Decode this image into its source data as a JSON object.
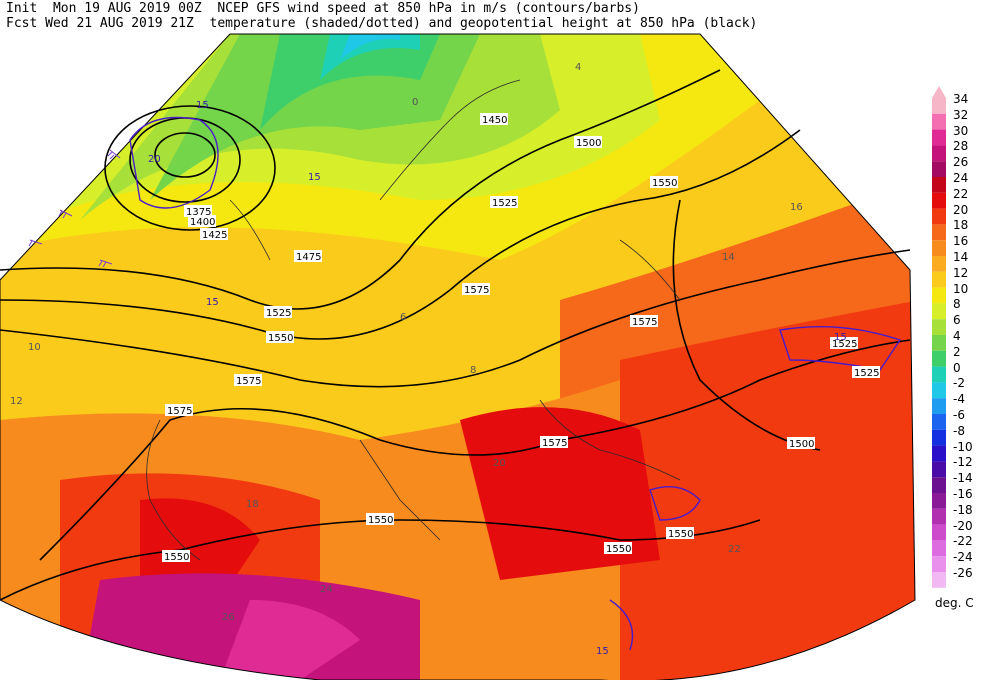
{
  "header": {
    "init_line": "Init  Mon 19 AUG 2019 00Z  NCEP GFS wind speed at 850 hPa in m/s (contours/barbs)",
    "fcst_line": "Fcst Wed 21 AUG 2019 21Z  temperature (shaded/dotted) and geopotential height at 850 hPa (black)"
  },
  "colorbar": {
    "unit": "deg. C",
    "levels": [
      {
        "label": "34",
        "color": "#f7b6c8"
      },
      {
        "label": "32",
        "color": "#f46fb2"
      },
      {
        "label": "30",
        "color": "#e02b95"
      },
      {
        "label": "28",
        "color": "#c5137c"
      },
      {
        "label": "26",
        "color": "#a50a63"
      },
      {
        "label": "24",
        "color": "#c4061a"
      },
      {
        "label": "22",
        "color": "#e40c0c"
      },
      {
        "label": "20",
        "color": "#f23a10"
      },
      {
        "label": "18",
        "color": "#f6691a"
      },
      {
        "label": "16",
        "color": "#f88b1e"
      },
      {
        "label": "14",
        "color": "#faab20"
      },
      {
        "label": "12",
        "color": "#fbcb1c"
      },
      {
        "label": "10",
        "color": "#f5e810"
      },
      {
        "label": "8",
        "color": "#d6ef2a"
      },
      {
        "label": "6",
        "color": "#a8e03a"
      },
      {
        "label": "4",
        "color": "#74d44a"
      },
      {
        "label": "2",
        "color": "#3fcf6a"
      },
      {
        "label": "0",
        "color": "#1ed1b6"
      },
      {
        "label": "-2",
        "color": "#20c8e8"
      },
      {
        "label": "-4",
        "color": "#1e9cf0"
      },
      {
        "label": "-6",
        "color": "#1a64f0"
      },
      {
        "label": "-8",
        "color": "#1530e0"
      },
      {
        "label": "-10",
        "color": "#2a10c8"
      },
      {
        "label": "-12",
        "color": "#4a0ca8"
      },
      {
        "label": "-14",
        "color": "#6a1090"
      },
      {
        "label": "-16",
        "color": "#8a1a98"
      },
      {
        "label": "-18",
        "color": "#b030b0"
      },
      {
        "label": "-20",
        "color": "#cc4ccc"
      },
      {
        "label": "-22",
        "color": "#dc6ce0"
      },
      {
        "label": "-24",
        "color": "#e890ec"
      },
      {
        "label": "-26",
        "color": "#f2b8f4"
      }
    ]
  },
  "height_labels": [
    "1450",
    "1475",
    "1500",
    "1525",
    "1550",
    "1575",
    "1375",
    "1400",
    "1425",
    "1525",
    "1550",
    "1575",
    "1575",
    "1500",
    "1550",
    "1575",
    "1525",
    "1575",
    "1550",
    "1550",
    "1550",
    "1525"
  ],
  "temperature_labels": [
    "16",
    "14",
    "12",
    "10",
    "8",
    "6",
    "4",
    "0",
    "18",
    "20",
    "22",
    "24",
    "26"
  ],
  "wind_labels": [
    "15",
    "20"
  ]
}
